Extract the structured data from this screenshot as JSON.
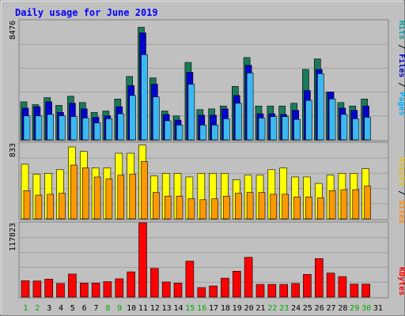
{
  "chart_data": [
    {
      "type": "bar",
      "title": "Daily usage for June 2019",
      "categories": [
        "1",
        "2",
        "3",
        "4",
        "5",
        "6",
        "7",
        "8",
        "9",
        "10",
        "11",
        "12",
        "13",
        "14",
        "15",
        "16",
        "17",
        "18",
        "19",
        "20",
        "21",
        "22",
        "23",
        "24",
        "25",
        "26",
        "27",
        "28",
        "29",
        "30",
        "31"
      ],
      "weekend_days": [
        "1",
        "2",
        "8",
        "9",
        "15",
        "16",
        "22",
        "23",
        "29",
        "30"
      ],
      "y_max_label": "8476",
      "ylim": [
        0,
        8476
      ],
      "series": [
        {
          "name": "Hits",
          "color": "#1a7a5a",
          "values": [
            2700,
            2500,
            3000,
            2450,
            3100,
            2650,
            1950,
            2050,
            2900,
            4500,
            8000,
            4400,
            2050,
            1700,
            5500,
            2150,
            2200,
            2400,
            3800,
            5850,
            2400,
            2400,
            2400,
            2600,
            5000,
            5750,
            3400,
            2650,
            2400,
            2900,
            0
          ]
        },
        {
          "name": "Files",
          "color": "#0000cc",
          "values": [
            2250,
            2350,
            2700,
            1950,
            2600,
            2200,
            1600,
            1700,
            2350,
            3850,
            7600,
            3950,
            1800,
            1400,
            4800,
            1750,
            1750,
            2200,
            3150,
            5300,
            1850,
            1850,
            1800,
            2100,
            3500,
            5000,
            3400,
            2250,
            2100,
            2400,
            0
          ]
        },
        {
          "name": "Pages",
          "color": "#3cb8f0",
          "values": [
            1700,
            1700,
            1800,
            1700,
            1650,
            1550,
            1200,
            1500,
            1850,
            3150,
            6050,
            3050,
            1350,
            1050,
            3950,
            1050,
            1050,
            1500,
            2600,
            4750,
            1550,
            1650,
            1650,
            1450,
            2800,
            4700,
            2900,
            1800,
            1500,
            1600,
            0
          ]
        }
      ]
    },
    {
      "type": "bar",
      "y_max_label": "833",
      "ylim": [
        0,
        833
      ],
      "series": [
        {
          "name": "Visits",
          "color": "#ffff00",
          "values": [
            600,
            490,
            500,
            540,
            790,
            740,
            560,
            560,
            720,
            720,
            810,
            470,
            500,
            500,
            460,
            500,
            500,
            500,
            430,
            480,
            480,
            540,
            560,
            460,
            460,
            390,
            480,
            500,
            500,
            550,
            0
          ]
        },
        {
          "name": "Sites",
          "color": "#ff9900",
          "values": [
            310,
            260,
            270,
            280,
            590,
            560,
            460,
            440,
            480,
            490,
            630,
            290,
            250,
            250,
            220,
            210,
            220,
            250,
            280,
            290,
            290,
            270,
            270,
            240,
            240,
            230,
            310,
            320,
            320,
            360,
            0
          ]
        }
      ]
    },
    {
      "type": "bar",
      "y_max_label": "117823",
      "ylim": [
        0,
        117823
      ],
      "series": [
        {
          "name": "KBytes",
          "color": "#ff0000",
          "values": [
            26000,
            25500,
            28500,
            21500,
            36500,
            22000,
            22000,
            24500,
            29000,
            40000,
            117823,
            45500,
            24000,
            22000,
            57000,
            15000,
            17500,
            30000,
            41000,
            63000,
            20000,
            20000,
            20000,
            21500,
            36000,
            61000,
            38000,
            32500,
            20500,
            20500,
            0
          ]
        }
      ]
    }
  ],
  "labels": {
    "panel1_right": {
      "hits": "Hits",
      "files": "Files",
      "pages": "Pages",
      "sep": " / "
    },
    "panel2_right": {
      "visits": "Visits",
      "sites": "Sites",
      "sep": " / "
    },
    "panel3_right": {
      "kbytes": "KBytes"
    }
  },
  "colors": {
    "background": "#c0c0c0",
    "title": "#0000ff",
    "axis_label": "#000000",
    "weekend_label": "#00aa00",
    "gridline": "#808080",
    "hits_label": "#00a0a0",
    "files_label": "#0000cc",
    "pages_label": "#00b0ff",
    "visits_label": "#e8c000",
    "sites_label": "#ff8800",
    "kbytes_label": "#ff0000"
  }
}
